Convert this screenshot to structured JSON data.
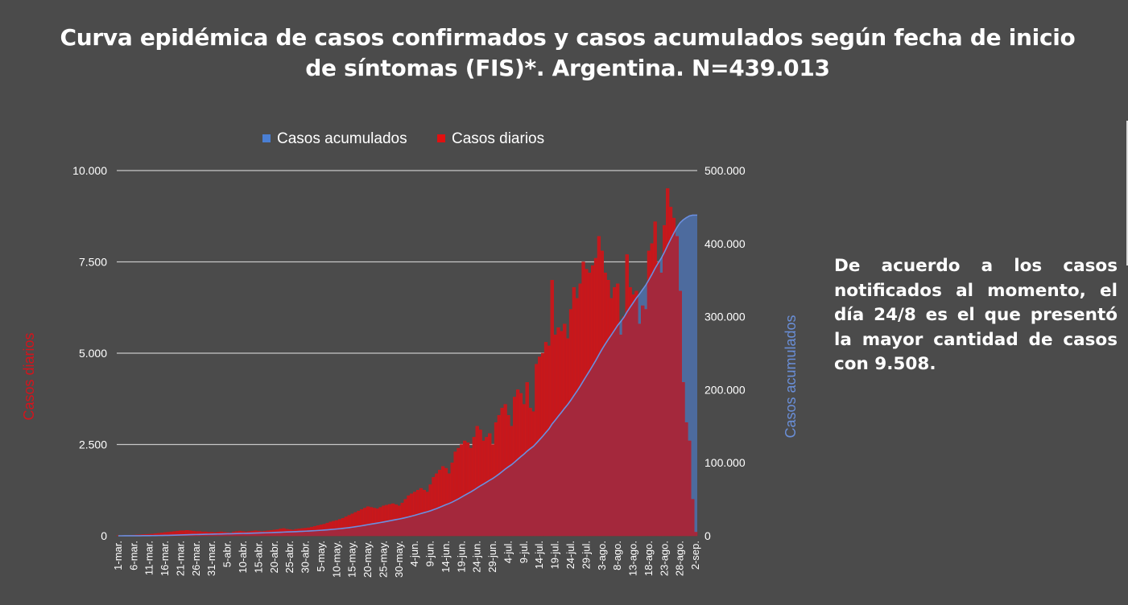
{
  "chart_data": {
    "type": "bar+area",
    "title": "Curva epidémica de casos confirmados y casos acumulados según fecha de inicio de síntomas (FIS)*. Argentina. N=439.013",
    "total_cases": 439013,
    "legend": [
      {
        "name": "Casos acumulados",
        "color": "#4a7fd4"
      },
      {
        "name": "Casos diarios",
        "color": "#e01010"
      }
    ],
    "legend_position": "top",
    "ylabel_left": "Casos diarios",
    "ylabel_right": "Casos acumulados",
    "ylim_left": [
      0,
      10000
    ],
    "ylim_right": [
      0,
      500000
    ],
    "yticks_left": [
      "0",
      "2.500",
      "5.000",
      "7.500",
      "10.000"
    ],
    "yticks_right": [
      "0",
      "100.000",
      "200.000",
      "300.000",
      "400.000",
      "500.000"
    ],
    "grid": true,
    "start_date": "1-mar",
    "xtick_labels": [
      "1-mar.",
      "6-mar.",
      "11-mar.",
      "16-mar.",
      "21-mar.",
      "26-mar.",
      "31-mar.",
      "5-abr.",
      "10-abr.",
      "15-abr.",
      "20-abr.",
      "25-abr.",
      "30-abr.",
      "5-may.",
      "10-may.",
      "15-may.",
      "20-may.",
      "25-may.",
      "30-may.",
      "4-jun.",
      "9-jun.",
      "14-jun.",
      "19-jun.",
      "24-jun.",
      "29-jun.",
      "4-jul.",
      "9-jul.",
      "14-jul.",
      "19-jul.",
      "24-jul.",
      "29-jul.",
      "3-ago.",
      "8-ago.",
      "13-ago.",
      "18-ago.",
      "23-ago.",
      "28-ago.",
      "2-sep."
    ],
    "daily_cases": [
      5,
      8,
      10,
      12,
      15,
      20,
      25,
      30,
      35,
      40,
      45,
      50,
      60,
      70,
      80,
      90,
      100,
      110,
      120,
      130,
      140,
      140,
      150,
      140,
      130,
      120,
      120,
      110,
      110,
      100,
      100,
      90,
      100,
      110,
      100,
      90,
      80,
      110,
      120,
      130,
      120,
      110,
      120,
      130,
      140,
      130,
      120,
      130,
      140,
      150,
      160,
      170,
      190,
      200,
      180,
      170,
      160,
      180,
      190,
      200,
      210,
      220,
      240,
      260,
      280,
      300,
      320,
      350,
      380,
      400,
      420,
      450,
      480,
      520,
      560,
      600,
      640,
      680,
      720,
      760,
      800,
      780,
      760,
      740,
      780,
      820,
      840,
      860,
      880,
      850,
      820,
      900,
      1000,
      1100,
      1150,
      1200,
      1250,
      1300,
      1250,
      1200,
      1400,
      1600,
      1700,
      1800,
      1900,
      1850,
      1700,
      2000,
      2300,
      2400,
      2500,
      2600,
      2550,
      2400,
      2700,
      3000,
      2900,
      2600,
      2700,
      2800,
      2500,
      3100,
      3300,
      3500,
      3600,
      3300,
      3000,
      3800,
      4000,
      3900,
      3600,
      4200,
      3500,
      3400,
      4700,
      4900,
      5000,
      5300,
      5200,
      7000,
      5500,
      5700,
      5600,
      5800,
      5400,
      6200,
      6800,
      6500,
      6900,
      7500,
      7300,
      7200,
      7400,
      7600,
      8200,
      7800,
      7200,
      7000,
      6500,
      6800,
      6900,
      5500,
      6000,
      7700,
      6800,
      6600,
      6700,
      5800,
      6300,
      6200,
      7800,
      8000,
      8600,
      7500,
      7200,
      8500,
      9508,
      9000,
      8700,
      8200,
      6700,
      4200,
      3100,
      2600,
      1000,
      100
    ]
  },
  "side_note": "De acuerdo a los casos notificados al momento, el día 24/8 es el que presentó la mayor cantidad de casos con 9.508."
}
